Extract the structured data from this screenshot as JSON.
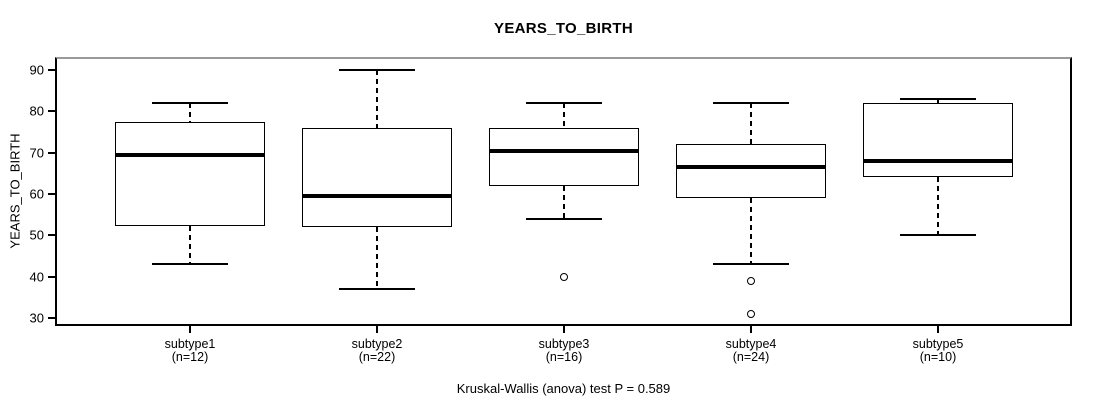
{
  "chart_data": {
    "type": "boxplot",
    "title": "YEARS_TO_BIRTH",
    "ylabel": "YEARS_TO_BIRTH",
    "xlabel": "",
    "annotation": "Kruskal-Wallis (anova) test P = 0.589",
    "ylim": [
      28.5,
      92.7
    ],
    "yticks": [
      30,
      40,
      50,
      60,
      70,
      80,
      90
    ],
    "grid": false,
    "legend": "none",
    "groups": [
      {
        "label": "subtype1",
        "n_label": "(n=12)",
        "whisker_low": 43,
        "q1": 52.25,
        "median": 69.5,
        "q3": 77.5,
        "whisker_high": 82,
        "outliers": []
      },
      {
        "label": "subtype2",
        "n_label": "(n=22)",
        "whisker_low": 37,
        "q1": 52,
        "median": 59.5,
        "q3": 76,
        "whisker_high": 90,
        "outliers": []
      },
      {
        "label": "subtype3",
        "n_label": "(n=16)",
        "whisker_low": 54,
        "q1": 62,
        "median": 70.5,
        "q3": 76,
        "whisker_high": 82,
        "outliers": [
          40
        ]
      },
      {
        "label": "subtype4",
        "n_label": "(n=24)",
        "whisker_low": 43,
        "q1": 59,
        "median": 66.5,
        "q3": 72,
        "whisker_high": 82,
        "outliers": [
          39,
          31
        ]
      },
      {
        "label": "subtype5",
        "n_label": "(n=10)",
        "whisker_low": 50,
        "q1": 64,
        "median": 68,
        "q3": 82,
        "whisker_high": 83,
        "outliers": []
      }
    ]
  },
  "colors": {
    "line": "#000000",
    "background": "#ffffff",
    "frame_top": "#9a9a9a"
  }
}
